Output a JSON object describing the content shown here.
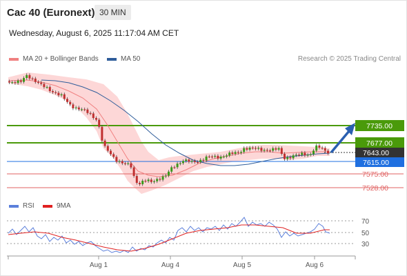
{
  "header": {
    "instrument": "Cac 40 (Euronext)",
    "timeframe": "30 MIN",
    "timestamp": "Wednesday, August 6, 2025 11:17:04 AM CET"
  },
  "legend": {
    "ma20_label": "MA 20 + Bollinger Bands",
    "ma50_label": "MA 50",
    "ma20_color": "#f08080",
    "ma50_color": "#2f5d9a",
    "credit": "Research © 2025 Trading Central"
  },
  "rsi_legend": {
    "rsi_label": "RSI",
    "ma_label": "9MA",
    "rsi_color": "#5b7fdb",
    "ma_color": "#e02020"
  },
  "levels": [
    {
      "label": "7735.00",
      "kind": "target"
    },
    {
      "label": "7677.00",
      "kind": "resistance"
    },
    {
      "label": "7643.00",
      "kind": "last"
    },
    {
      "label": "7615.00",
      "kind": "pivot"
    },
    {
      "label": "7575.00",
      "kind": "support"
    },
    {
      "label": "7528.00",
      "kind": "support"
    }
  ],
  "rsi_levels": [
    "70",
    "50",
    "30"
  ],
  "x_labels": [
    "Aug 1",
    "Aug 4",
    "Aug 5",
    "Aug 6"
  ],
  "colors": {
    "resistance": "#4a9a0a",
    "pivot": "#1f6fe0",
    "support": "#e06060",
    "last": "#333333",
    "arrow": "#2a5fb0",
    "bollinger_fill": "#fdd7d7"
  }
}
